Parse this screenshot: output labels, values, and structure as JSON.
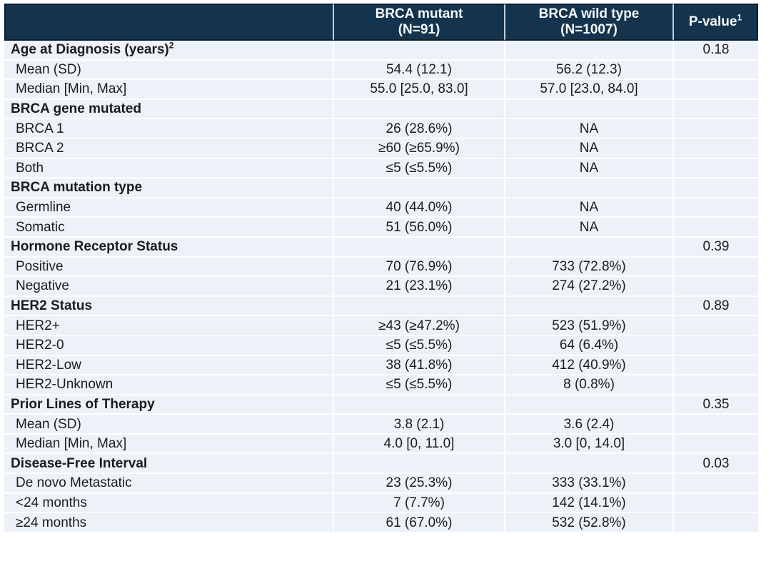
{
  "table": {
    "header": {
      "columns": [
        {
          "label": ""
        },
        {
          "label": "BRCA mutant",
          "sublabel": "(N=91)"
        },
        {
          "label": "BRCA wild type",
          "sublabel": "(N=1007)"
        },
        {
          "label": "P-value",
          "sup": "1"
        }
      ]
    },
    "rows": [
      {
        "label": "Age at Diagnosis (years)",
        "label_sup": "2",
        "section": true,
        "mutant": "",
        "wildtype": "",
        "pvalue": "0.18"
      },
      {
        "label": "Mean (SD)",
        "section": false,
        "mutant": "54.4 (12.1)",
        "wildtype": "56.2 (12.3)",
        "pvalue": ""
      },
      {
        "label": "Median [Min, Max]",
        "section": false,
        "mutant": "55.0 [25.0, 83.0]",
        "wildtype": "57.0 [23.0, 84.0]",
        "pvalue": ""
      },
      {
        "label": "BRCA gene mutated",
        "section": true,
        "mutant": "",
        "wildtype": "",
        "pvalue": ""
      },
      {
        "label": "BRCA 1",
        "section": false,
        "mutant": "26 (28.6%)",
        "wildtype": "NA",
        "pvalue": ""
      },
      {
        "label": "BRCA 2",
        "section": false,
        "mutant": "≥60 (≥65.9%)",
        "wildtype": "NA",
        "pvalue": ""
      },
      {
        "label": "Both",
        "section": false,
        "mutant": "≤5 (≤5.5%)",
        "wildtype": "NA",
        "pvalue": ""
      },
      {
        "label": "BRCA mutation type",
        "section": true,
        "mutant": "",
        "wildtype": "",
        "pvalue": ""
      },
      {
        "label": "Germline",
        "section": false,
        "mutant": "40 (44.0%)",
        "wildtype": "NA",
        "pvalue": ""
      },
      {
        "label": "Somatic",
        "section": false,
        "mutant": "51 (56.0%)",
        "wildtype": "NA",
        "pvalue": ""
      },
      {
        "label": "Hormone Receptor Status",
        "section": true,
        "mutant": "",
        "wildtype": "",
        "pvalue": "0.39"
      },
      {
        "label": "Positive",
        "section": false,
        "mutant": "70 (76.9%)",
        "wildtype": "733 (72.8%)",
        "pvalue": ""
      },
      {
        "label": "Negative",
        "section": false,
        "mutant": "21 (23.1%)",
        "wildtype": "274 (27.2%)",
        "pvalue": ""
      },
      {
        "label": "HER2 Status",
        "section": true,
        "mutant": "",
        "wildtype": "",
        "pvalue": "0.89"
      },
      {
        "label": "HER2+",
        "section": false,
        "mutant": "≥43 (≥47.2%)",
        "wildtype": "523 (51.9%)",
        "pvalue": ""
      },
      {
        "label": "HER2-0",
        "section": false,
        "mutant": "≤5 (≤5.5%)",
        "wildtype": "64 (6.4%)",
        "pvalue": ""
      },
      {
        "label": "HER2-Low",
        "section": false,
        "mutant": "38 (41.8%)",
        "wildtype": "412 (40.9%)",
        "pvalue": ""
      },
      {
        "label": "HER2-Unknown",
        "section": false,
        "mutant": "≤5 (≤5.5%)",
        "wildtype": "8 (0.8%)",
        "pvalue": ""
      },
      {
        "label": "Prior Lines of Therapy",
        "section": true,
        "mutant": "",
        "wildtype": "",
        "pvalue": "0.35"
      },
      {
        "label": "Mean (SD)",
        "section": false,
        "mutant": "3.8 (2.1)",
        "wildtype": "3.6 (2.4)",
        "pvalue": ""
      },
      {
        "label": "Median [Min, Max]",
        "section": false,
        "mutant": "4.0 [0, 11.0]",
        "wildtype": "3.0 [0, 14.0]",
        "pvalue": ""
      },
      {
        "label": "Disease-Free Interval",
        "section": true,
        "mutant": "",
        "wildtype": "",
        "pvalue": "0.03"
      },
      {
        "label": "De novo Metastatic",
        "section": false,
        "mutant": "23 (25.3%)",
        "wildtype": "333 (33.1%)",
        "pvalue": ""
      },
      {
        "label": "<24 months",
        "section": false,
        "mutant": "7 (7.7%)",
        "wildtype": "142 (14.1%)",
        "pvalue": ""
      },
      {
        "label": "≥24 months",
        "section": false,
        "mutant": "61 (67.0%)",
        "wildtype": "532 (52.8%)",
        "pvalue": ""
      }
    ]
  },
  "colors": {
    "header_bg": "#14344E",
    "header_text": "#F5F8FA",
    "header_border": "#0A1E30",
    "header_divider": "#BFCDD8",
    "row_bg": "#ECF2F8",
    "row_separator": "#FFFFFF",
    "body_text": "#1C1C1C",
    "page_bg": "#FFFFFF"
  }
}
